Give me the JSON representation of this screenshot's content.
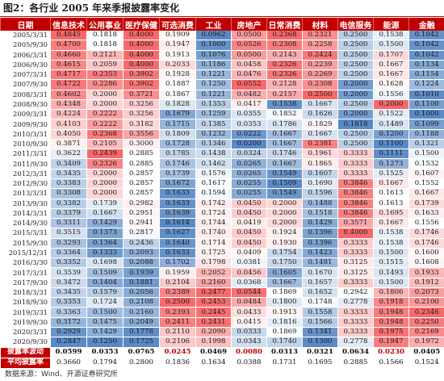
{
  "title": "图2：各行业 2005 年来季报披露率变化",
  "source_note": "数据来源：Wind、开源证券研究所",
  "colors": {
    "header_bg": "#c00000",
    "high_extreme": "#f8696b",
    "low_extreme": "#5a8ac6",
    "mid": "#ffffff",
    "highlight_text": "#c00000"
  },
  "chart_data": {
    "type": "heatmap",
    "title": "图2：各行业 2005 年来季报披露率变化",
    "row_header": "日期",
    "columns": [
      "信息技术",
      "公用事业",
      "医疗保健",
      "可选消费",
      "工业",
      "房地产",
      "日常消费",
      "材料",
      "电信服务",
      "能源",
      "金融"
    ],
    "rows": [
      [
        "2005/3/31",
        0.4845,
        0.1818,
        0.4,
        0.1909,
        0.0962,
        0.05,
        0.2368,
        0.2321,
        0.25,
        0.1538,
        0.1042
      ],
      [
        "2005/9/30",
        0.47,
        0.1818,
        0.4,
        0.1947,
        0.1,
        0.0526,
        0.2308,
        0.2258,
        0.25,
        0.15,
        0.1042
      ],
      [
        "2006/3/31",
        0.466,
        0.2121,
        0.4,
        0.1913,
        0.1076,
        0.05,
        0.2143,
        0.2424,
        0.25,
        0.1707,
        0.1042
      ],
      [
        "2006/9/30",
        0.4615,
        0.2059,
        0.4,
        0.2033,
        0.1186,
        0.0458,
        0.2326,
        0.2239,
        0.25,
        0.1667,
        0.1134
      ],
      [
        "2007/3/31",
        0.4717,
        0.2353,
        0.3902,
        0.1928,
        0.1221,
        0.0476,
        0.2326,
        0.2269,
        0.25,
        0.1667,
        0.1154
      ],
      [
        "2007/9/30",
        0.4722,
        0.2286,
        0.3902,
        0.1887,
        0.125,
        0.0552,
        0.2128,
        0.2308,
        0.2,
        0.1628,
        0.1224
      ],
      [
        "2008/3/31",
        0.4602,
        0.2,
        0.3721,
        0.1867,
        0.1221,
        0.0482,
        0.2157,
        0.25,
        0.2,
        0.1556,
        0.101
      ],
      [
        "2008/9/30",
        0.4348,
        0.2,
        0.3256,
        0.1828,
        0.1353,
        0.0417,
        0.1538,
        0.1667,
        0.25,
        0.2,
        0.11
      ],
      [
        "2009/3/31",
        0.4224,
        0.2222,
        0.3256,
        0.1679,
        0.1259,
        0.0355,
        0.1852,
        0.1626,
        0.2,
        0.1522,
        0.1
      ],
      [
        "2009/9/30",
        0.4103,
        0.2222,
        0.3182,
        0.1715,
        0.1385,
        0.0353,
        0.1786,
        0.1829,
        0.1818,
        0.1489,
        0.1099
      ],
      [
        "2010/3/31",
        0.405,
        0.2368,
        0.3556,
        0.1809,
        0.1232,
        0.0222,
        0.1667,
        0.1667,
        0.25,
        0.12,
        0.1188
      ],
      [
        "2010/9/30",
        0.3871,
        0.2105,
        0.3,
        0.1728,
        0.1346,
        0.02,
        0.1667,
        0.2381,
        0.25,
        0.11,
        0.1321
      ],
      [
        "2011/3/31",
        0.3622,
        0.2439,
        0.2885,
        0.1785,
        0.1438,
        0.0324,
        0.1746,
        0.1961,
        0.3333,
        0.1111,
        0.15
      ],
      [
        "2011/9/30",
        0.3409,
        0.2326,
        0.2885,
        0.1746,
        0.1462,
        0.0265,
        0.1667,
        0.1865,
        0.3333,
        0.1273,
        0.1532
      ],
      [
        "2012/3/31",
        0.3435,
        0.2,
        0.2857,
        0.1739,
        0.1576,
        0.0265,
        0.1549,
        0.1607,
        0.3333,
        0.1525,
        0.1607
      ],
      [
        "2012/9/30",
        0.3383,
        0.2,
        0.2857,
        0.1672,
        0.1617,
        0.0255,
        0.1509,
        0.169,
        0.3846,
        0.1667,
        0.1552
      ],
      [
        "2013/3/31",
        0.3308,
        0.2,
        0.2857,
        0.1633,
        0.1594,
        0.0255,
        0.1549,
        0.1596,
        0.3846,
        0.1613,
        0.1667
      ],
      [
        "2013/9/30",
        0.3382,
        0.1739,
        0.2982,
        0.1633,
        0.1742,
        0.045,
        0.2,
        0.1488,
        0.3846,
        0.1613,
        0.1739
      ],
      [
        "2014/3/31",
        0.3379,
        0.1667,
        0.2951,
        0.1639,
        0.1724,
        0.045,
        0.2,
        0.1518,
        0.3846,
        0.1695,
        0.1633
      ],
      [
        "2014/9/30",
        0.3311,
        0.1429,
        0.2941,
        0.1614,
        0.1744,
        0.0419,
        0.2,
        0.1429,
        0.3571,
        0.1667,
        0.1556
      ],
      [
        "2015/3/31",
        0.3515,
        0.1373,
        0.2817,
        0.1627,
        0.174,
        0.045,
        0.1924,
        0.1396,
        0.4,
        0.1538,
        0.1746
      ],
      [
        "2015/9/30",
        0.3293,
        0.1364,
        0.2436,
        0.164,
        0.1714,
        0.045,
        0.193,
        0.1396,
        0.3333,
        0.1538,
        0.1746
      ],
      [
        "2015/12/31",
        0.3364,
        0.1333,
        0.2093,
        0.1633,
        0.1725,
        0.0409,
        0.1754,
        0.1423,
        0.3333,
        0.15,
        0.16
      ],
      [
        "2016/3/30",
        0.3352,
        0.1698,
        0.2088,
        0.1702,
        0.1798,
        0.0381,
        0.175,
        0.1481,
        0.3125,
        0.1515,
        0.1608
      ],
      [
        "2017/3/31",
        0.3539,
        0.1509,
        0.1939,
        0.1959,
        0.2052,
        0.0456,
        0.1605,
        0.167,
        0.3125,
        0.1493,
        0.1933
      ],
      [
        "2017/9/30",
        0.3472,
        0.1404,
        0.1881,
        0.2104,
        0.216,
        0.0368,
        0.1667,
        0.1657,
        0.3333,
        0.15,
        0.1912
      ],
      [
        "2018/3/31",
        0.3435,
        0.1579,
        0.2056,
        0.2389,
        0.2477,
        0.0544,
        0.1869,
        0.1652,
        0.2942,
        0.1806,
        0.2073
      ],
      [
        "2018/9/30",
        0.3353,
        0.1724,
        0.2108,
        0.25,
        0.2453,
        0.0484,
        0.18,
        0.1748,
        0.2778,
        0.1918,
        0.21
      ],
      [
        "2019/3/31",
        0.3363,
        0.15,
        0.216,
        0.2393,
        0.2445,
        0.0433,
        0.1913,
        0.1558,
        0.3333,
        0.1948,
        0.2346
      ],
      [
        "2019/9/30",
        0.3172,
        0.1475,
        0.2049,
        0.2411,
        0.2431,
        0.0415,
        0.1816,
        0.1566,
        0.3333,
        0.1948,
        0.225
      ],
      [
        "2020/3/31",
        0.2929,
        0.1429,
        0.1778,
        0.211,
        0.209,
        0.0333,
        0.1869,
        0.1341,
        0.3333,
        0.1975,
        0.2169
      ],
      [
        "2020/9/30",
        0.2847,
        0.125,
        0.1725,
        0.2106,
        0.1998,
        0.0343,
        0.174,
        0.13,
        0.2778,
        0.1947,
        0.1972
      ]
    ],
    "summary_rows": [
      {
        "label": "披露率波动",
        "values": [
          "0.0599",
          "0.0353",
          "0.0765",
          "0.0245",
          "0.0469",
          "0.0080",
          "0.0313",
          "0.0321",
          "0.0634",
          "0.0230",
          "0.0405"
        ],
        "highlight": [
          3,
          5,
          9
        ]
      },
      {
        "label": "平均披露率",
        "values": [
          "0.3660",
          "0.1794",
          "0.2800",
          "0.1836",
          "0.1634",
          "0.0388",
          "0.1731",
          "0.1695",
          "0.2885",
          "0.1566",
          "0.1524"
        ],
        "highlight": []
      }
    ],
    "color_scale": {
      "low": "#5a8ac6",
      "mid": "#ffffff",
      "high": "#f8696b",
      "scope": "per-column"
    },
    "grid": false,
    "legend": "none"
  }
}
